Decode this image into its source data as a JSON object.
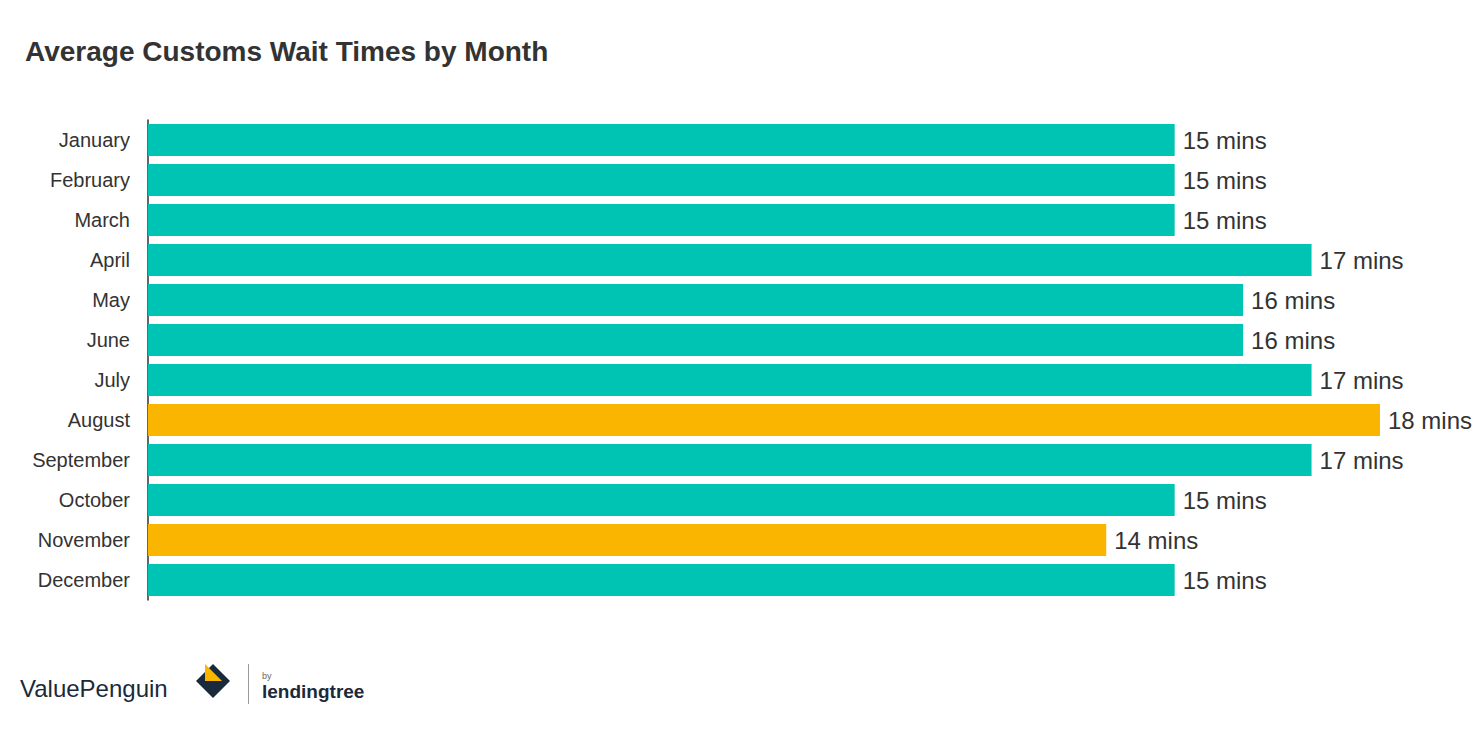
{
  "chart_data": {
    "type": "bar",
    "orientation": "horizontal",
    "title": "Average Customs Wait Times by Month",
    "categories": [
      "January",
      "February",
      "March",
      "April",
      "May",
      "June",
      "July",
      "August",
      "September",
      "October",
      "November",
      "December"
    ],
    "values": [
      15,
      15,
      15,
      17,
      16,
      16,
      17,
      18,
      17,
      15,
      14,
      15
    ],
    "value_labels": [
      "15 mins",
      "15 mins",
      "15 mins",
      "17 mins",
      "16 mins",
      "16 mins",
      "17 mins",
      "18 mins",
      "17 mins",
      "15 mins",
      "14 mins",
      "15 mins"
    ],
    "colors": [
      "#00c4b3",
      "#00c4b3",
      "#00c4b3",
      "#00c4b3",
      "#00c4b3",
      "#00c4b3",
      "#00c4b3",
      "#f9b500",
      "#00c4b3",
      "#00c4b3",
      "#f9b500",
      "#00c4b3"
    ],
    "xlim": [
      0,
      18
    ],
    "data_labels": true,
    "tick_labels": "y",
    "grid": false,
    "annotations": [
      "ValuePenguin",
      "by",
      "lendingtree"
    ]
  }
}
